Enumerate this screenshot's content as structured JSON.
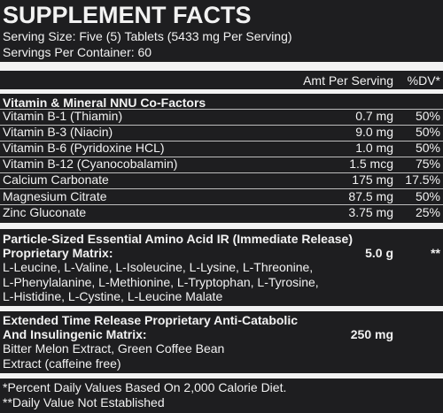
{
  "title": "SUPPLEMENT FACTS",
  "serving_size": "Serving Size: Five (5) Tablets (5433 mg Per Serving)",
  "servings_per_container": "Servings Per Container: 60",
  "header": {
    "amount": "Amt Per Serving",
    "dv": "%DV*"
  },
  "section1": {
    "title": "Vitamin & Mineral NNU Co-Factors",
    "rows": [
      [
        "Vitamin B-1 (Thiamin)",
        "0.7 mg",
        "50%"
      ],
      [
        "Vitamin B-3 (Niacin)",
        "9.0 mg",
        "50%"
      ],
      [
        "Vitamin B-6 (Pyridoxine HCL)",
        "1.0 mg",
        "50%"
      ],
      [
        "Vitamin B-12 (Cyanocobalamin)",
        "1.5 mcg",
        "75%"
      ],
      [
        "Calcium Carbonate",
        "175 mg",
        "17.5%"
      ],
      [
        "Magnesium Citrate",
        "87.5 mg",
        "50%"
      ],
      [
        "Zinc Gluconate",
        "3.75 mg",
        "25%"
      ]
    ]
  },
  "section2": {
    "title": "Particle-Sized Essential Amino Acid IR (Immediate Release)",
    "subtitle": "Proprietary Matrix:",
    "amount": "5.0 g",
    "dv": "**",
    "lines": [
      "L-Leucine, L-Valine, L-Isoleucine, L-Lysine, L-Threonine,",
      "L-Phenylalanine, L-Methionine, L-Tryptophan, L-Tyrosine,",
      "L-Histidine, L-Cystine, L-Leucine Malate"
    ]
  },
  "section3": {
    "title": "Extended Time Release Proprietary Anti-Catabolic",
    "subtitle": "And Insulingenic Matrix:",
    "amount": "250 mg",
    "lines": [
      "Bitter Melon Extract, Green Coffee Bean",
      "Extract (caffeine free)"
    ]
  },
  "footnotes": [
    "*Percent Daily Values Based On 2,000 Calorie Diet.",
    "**Daily Value Not Established"
  ]
}
